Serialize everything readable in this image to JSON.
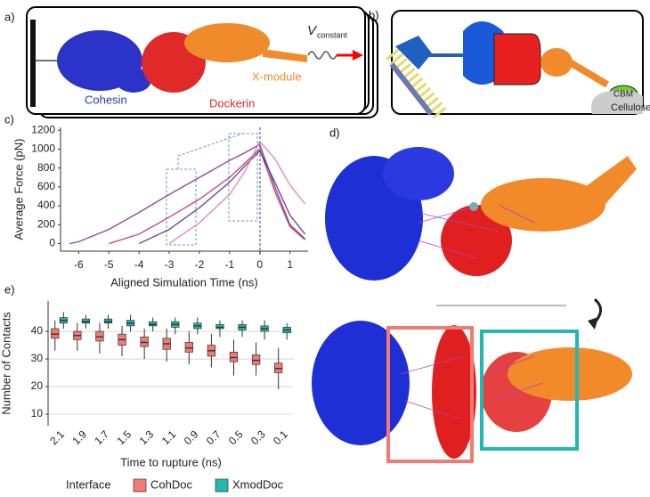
{
  "panel_labels": [
    "a)",
    "b)",
    "c)",
    "d)",
    "e)"
  ],
  "panel_a": {
    "labels": [
      "Cohesin",
      "Dockerin",
      "X-module"
    ],
    "force_symbol": "V",
    "force_subscript": "constant"
  },
  "panel_b": {
    "labels": [
      "CBM",
      "Cellulose"
    ]
  },
  "chart_data": [
    {
      "type": "line",
      "ylabel": "Average Force (pN)",
      "xlabel": "Aligned Simulation Time (ns)",
      "xlim": [
        -6.6,
        1.6
      ],
      "xticks": [
        -6,
        -5,
        -4,
        -3,
        -2,
        -1,
        0,
        1
      ],
      "ylim": [
        -80,
        1230
      ],
      "yticks": [
        0,
        200,
        400,
        600,
        800,
        1000,
        1200
      ],
      "x": [
        -6.3,
        -6,
        -5,
        -4,
        -3,
        -2,
        -1,
        -0.5,
        0,
        0.5,
        1,
        1.5
      ],
      "series": [
        {
          "color": "#7a2a86",
          "values": [
            0,
            20,
            150,
            330,
            520,
            700,
            880,
            960,
            1050,
            600,
            200,
            50
          ]
        },
        {
          "color": "#b0306a",
          "values": [
            null,
            null,
            0,
            100,
            280,
            470,
            700,
            850,
            1000,
            550,
            180,
            40
          ]
        },
        {
          "color": "#4b2f8f",
          "values": [
            null,
            null,
            null,
            0,
            150,
            380,
            650,
            820,
            980,
            650,
            300,
            100
          ]
        },
        {
          "color": "#e27a9a",
          "values": [
            null,
            null,
            null,
            null,
            0,
            220,
            520,
            760,
            1080,
            900,
            620,
            420
          ]
        }
      ]
    },
    {
      "type": "box",
      "ylabel": "Number of Contacts",
      "xlabel": "Time to rupture (ns)",
      "categories": [
        "2.1",
        "1.9",
        "1.7",
        "1.5",
        "1.3",
        "1.1",
        "0.9",
        "0.7",
        "0.5",
        "0.3",
        "0.1"
      ],
      "ylim": [
        5.8,
        51
      ],
      "yticks": [
        10,
        20,
        30,
        40
      ],
      "grid": true,
      "legend_title": "Interface",
      "series": [
        {
          "name": "CohDoc",
          "color": "#f07b72",
          "low": [
            33,
            33,
            32,
            31,
            30,
            29,
            28,
            27,
            24,
            24,
            19
          ],
          "q1": [
            37.5,
            37,
            36.5,
            35,
            34.5,
            33.5,
            32.5,
            31,
            29,
            28,
            25
          ],
          "median": [
            39,
            38.5,
            38,
            37,
            36,
            35.5,
            34,
            33,
            30.5,
            29.5,
            26.5
          ],
          "q3": [
            41,
            40,
            40,
            39,
            38,
            37.5,
            36,
            35,
            32.5,
            31.5,
            28.5
          ],
          "high": [
            44,
            43,
            43,
            42,
            41,
            41,
            40,
            39,
            37,
            36,
            34
          ]
        },
        {
          "name": "XmodDoc",
          "color": "#1fb8b2",
          "low": [
            41,
            41,
            41,
            40,
            40,
            39,
            39,
            38,
            38,
            37,
            37
          ],
          "q1": [
            43,
            43,
            43,
            42,
            42,
            41.5,
            41,
            41,
            40.5,
            40,
            39.5
          ],
          "median": [
            44,
            43.5,
            43.5,
            43,
            42.5,
            42.5,
            42,
            41.5,
            41.5,
            41,
            40.5
          ],
          "q3": [
            45,
            44.5,
            44.5,
            44,
            43.5,
            43.5,
            43,
            42.5,
            42.5,
            42,
            41.5
          ],
          "high": [
            47,
            46,
            46,
            46,
            45,
            45,
            45,
            44,
            44,
            44,
            43
          ]
        }
      ]
    }
  ]
}
